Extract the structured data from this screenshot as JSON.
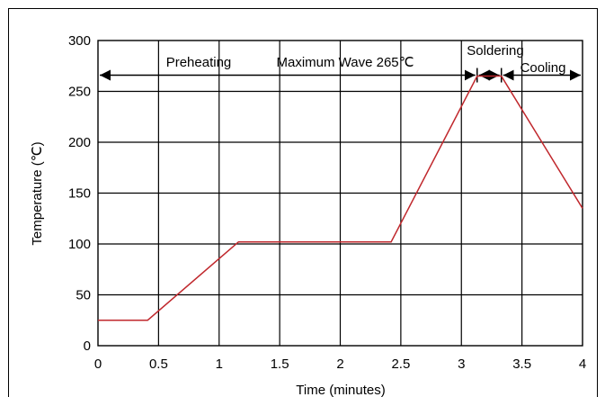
{
  "chart_data": {
    "type": "line",
    "xlabel": "Time (minutes)",
    "ylabel": "Temperature (℃)",
    "xlim": [
      0,
      4
    ],
    "ylim": [
      0,
      300
    ],
    "x_ticks": [
      "0",
      "0.5",
      "1",
      "1.5",
      "2",
      "2.5",
      "3",
      "3.5",
      "4"
    ],
    "y_ticks": [
      "0",
      "50",
      "100",
      "150",
      "200",
      "250",
      "300"
    ],
    "grid": true,
    "series": [
      {
        "color": "#c0282d",
        "x": [
          0,
          0.41,
          1.16,
          2.42,
          3.13,
          3.33,
          4.0
        ],
        "y": [
          25,
          25,
          102,
          102,
          265,
          265,
          135
        ]
      }
    ],
    "annotations": {
      "preheating": "Preheating",
      "max_wave": "Maximum Wave 265℃",
      "soldering": "Soldering",
      "cooling": "Cooling"
    },
    "arrows": [
      {
        "from": 0,
        "to": 3.13,
        "y": 265
      },
      {
        "from": 3.13,
        "to": 3.33,
        "y": 265
      },
      {
        "from": 3.33,
        "to": 4.0,
        "y": 265
      }
    ]
  }
}
